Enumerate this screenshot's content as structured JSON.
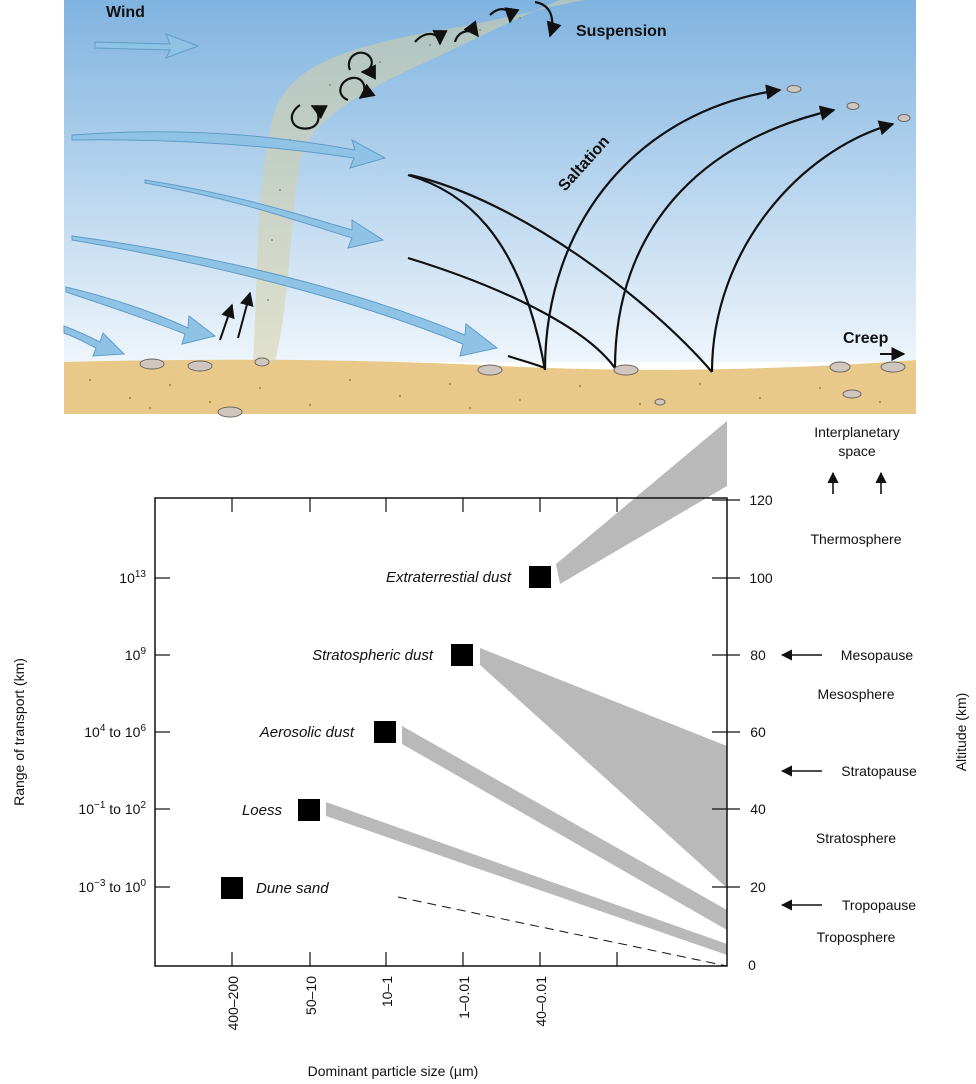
{
  "illustration": {
    "wind_label": "Wind",
    "suspension_label": "Suspension",
    "saltation_label": "Saltation",
    "creep_label": "Creep"
  },
  "chart": {
    "y_left_label": "Range of transport (km)",
    "y_right_label": "Altitude (km)",
    "x_label": "Dominant particle size (µm)",
    "left_ticks": [
      {
        "base": "10",
        "sup": "13",
        "rest": ""
      },
      {
        "base": "10",
        "sup": "9",
        "rest": ""
      },
      {
        "base": "10",
        "sup": "4",
        "rest": " to 10",
        "sup2": "6"
      },
      {
        "base": "10",
        "sup": "−1",
        "rest": " to 10",
        "sup2": "2"
      },
      {
        "base": "10",
        "sup": "−3",
        "rest": " to 10",
        "sup2": "0"
      }
    ],
    "x_ticks": [
      "400–200",
      "50–10",
      "10–1",
      "1–0.01",
      "40–0.01"
    ],
    "altitude_ticks": [
      "0",
      "20",
      "40",
      "60",
      "80",
      "100",
      "120"
    ],
    "particles": [
      {
        "label": "Extraterrestial dust",
        "size": "40–0.01"
      },
      {
        "label": "Stratospheric dust",
        "size": "1–0.01"
      },
      {
        "label": "Aerosolic dust",
        "size": "10–1"
      },
      {
        "label": "Loess",
        "size": "50–10"
      },
      {
        "label": "Dune sand",
        "size": "400–200"
      }
    ],
    "layers": {
      "interplanetary": [
        "Interplanetary",
        "space"
      ],
      "thermosphere": "Thermosphere",
      "mesopause": "Mesopause",
      "mesosphere": "Mesosphere",
      "stratopause": "Stratopause",
      "stratosphere": "Stratosphere",
      "tropopause": "Tropopause",
      "troposphere": "Troposphere"
    }
  },
  "colors": {
    "sky_top": "#7fb3e0",
    "sky_bottom": "#eef5fb",
    "sand": "#e8c98a",
    "band": "#b9b9b9",
    "wind_arrow": "#8fc3e6"
  }
}
